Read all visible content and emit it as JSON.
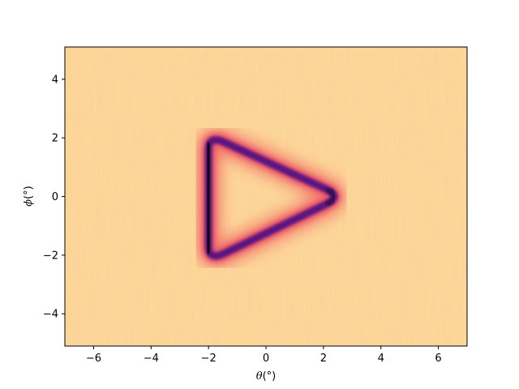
{
  "chart_data": {
    "type": "heatmap",
    "title": "",
    "xlabel": {
      "symbol": "θ",
      "unit": "(°)"
    },
    "ylabel": {
      "symbol": "ϕ",
      "unit": "(°)"
    },
    "xlim": [
      -7,
      7
    ],
    "ylim": [
      -5.1,
      5.1
    ],
    "xticks": [
      -6,
      -4,
      -2,
      0,
      2,
      4,
      6
    ],
    "yticks": [
      -4,
      -2,
      0,
      2,
      4
    ],
    "colormap": "magma",
    "background_color": "#fdd898",
    "ring_color_dark": "#000004",
    "ring_color_mid": "#5c1680",
    "ring_color_glow": "#f1605d",
    "feature": {
      "shape": "rounded-triangle-outline",
      "vertices": [
        [
          -2.0,
          2.1
        ],
        [
          -2.0,
          -2.2
        ],
        [
          2.65,
          0.0
        ]
      ],
      "left_edge_darkest": true
    },
    "grid": false
  }
}
